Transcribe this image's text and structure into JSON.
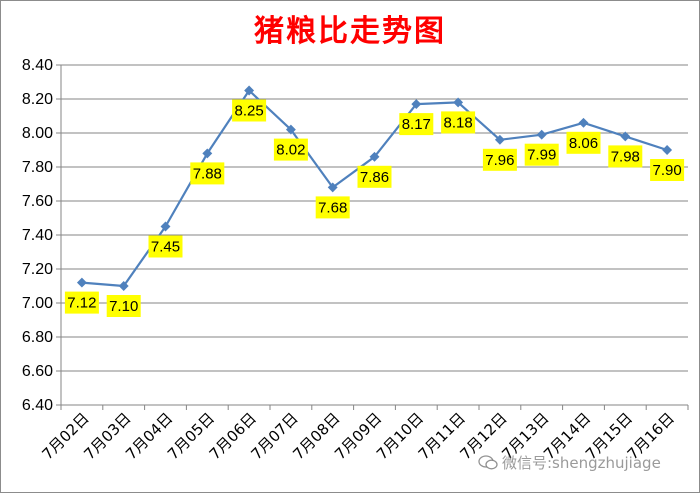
{
  "chart_data": {
    "type": "line",
    "title": "猪粮比走势图",
    "categories": [
      "7月02日",
      "7月03日",
      "7月04日",
      "7月05日",
      "7月06日",
      "7月07日",
      "7月08日",
      "7月09日",
      "7月10日",
      "7月11日",
      "7月12日",
      "7月13日",
      "7月14日",
      "7月15日",
      "7月16日"
    ],
    "values": [
      7.12,
      7.1,
      7.45,
      7.88,
      8.25,
      8.02,
      7.68,
      7.86,
      8.17,
      8.18,
      7.96,
      7.99,
      8.06,
      7.98,
      7.9
    ],
    "data_labels": [
      "7.12",
      "7.10",
      "7.45",
      "7.88",
      "8.25",
      "8.02",
      "7.68",
      "7.86",
      "8.17",
      "8.18",
      "7.96",
      "7.99",
      "8.06",
      "7.98",
      "7.90"
    ],
    "yticks": [
      "6.40",
      "6.60",
      "6.80",
      "7.00",
      "7.20",
      "7.40",
      "7.60",
      "7.80",
      "8.00",
      "8.20",
      "8.40"
    ],
    "ylim": [
      6.4,
      8.4
    ],
    "grid": true,
    "legend": "none",
    "colors": {
      "line": "#4f81bd",
      "label_bg": "#ffff00",
      "title": "#ff0000",
      "grid": "#868686"
    }
  },
  "watermark": {
    "text": "微信号:shengzhujiage",
    "icon": "wechat-icon"
  }
}
